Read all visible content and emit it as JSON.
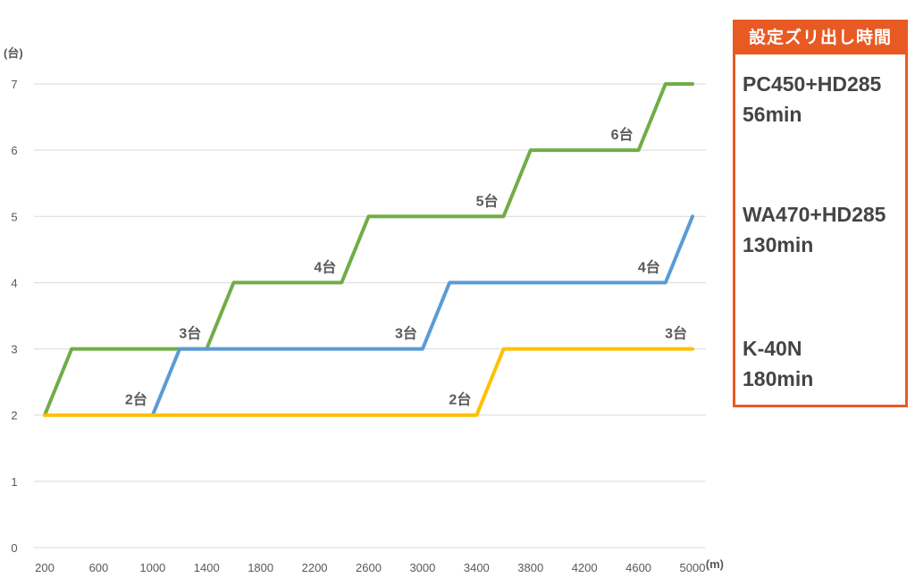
{
  "chart_data": {
    "type": "line",
    "title": "",
    "ylabel": "(台)",
    "xlabel": "(m)",
    "ylim": [
      0,
      7
    ],
    "yticks": [
      "0",
      "1",
      "2",
      "3",
      "4",
      "5",
      "6",
      "7"
    ],
    "xticks": [
      "200",
      "600",
      "1000",
      "1400",
      "1800",
      "2200",
      "2600",
      "3000",
      "3400",
      "3800",
      "4200",
      "4600",
      "5000"
    ],
    "grid": "horizontal",
    "series": [
      {
        "color": "#70ad47",
        "points": [
          [
            200,
            2
          ],
          [
            400,
            3
          ],
          [
            1400,
            3
          ],
          [
            1600,
            4
          ],
          [
            2400,
            4
          ],
          [
            2600,
            5
          ],
          [
            3600,
            5
          ],
          [
            3800,
            6
          ],
          [
            4600,
            6
          ],
          [
            4800,
            7
          ],
          [
            5000,
            7
          ]
        ],
        "labels": [
          {
            "text": "3台",
            "x": 1400,
            "y": 3
          },
          {
            "text": "4台",
            "x": 2400,
            "y": 4
          },
          {
            "text": "5台",
            "x": 3600,
            "y": 5
          },
          {
            "text": "6台",
            "x": 4600,
            "y": 6
          }
        ]
      },
      {
        "color": "#5b9bd5",
        "points": [
          [
            1000,
            2
          ],
          [
            1200,
            3
          ],
          [
            3000,
            3
          ],
          [
            3200,
            4
          ],
          [
            4800,
            4
          ],
          [
            5000,
            5
          ]
        ],
        "labels": [
          {
            "text": "2台",
            "x": 1000,
            "y": 2
          },
          {
            "text": "3台",
            "x": 3000,
            "y": 3
          },
          {
            "text": "4台",
            "x": 4800,
            "y": 4
          }
        ]
      },
      {
        "color": "#ffc000",
        "points": [
          [
            200,
            2
          ],
          [
            3400,
            2
          ],
          [
            3600,
            3
          ],
          [
            5000,
            3
          ]
        ],
        "labels": [
          {
            "text": "2台",
            "x": 3400,
            "y": 2
          },
          {
            "text": "3台",
            "x": 5000,
            "y": 3
          }
        ]
      }
    ]
  },
  "legend": {
    "header": "設定ズリ出し時間",
    "entries": [
      {
        "name": "PC450+HD285",
        "time": "56min"
      },
      {
        "name": "WA470+HD285",
        "time": "130min"
      },
      {
        "name": "K-40N",
        "time": "180min"
      }
    ]
  },
  "colors": {
    "accent": "#e85a23",
    "grid": "#d9d9d9",
    "label": "#595959"
  }
}
